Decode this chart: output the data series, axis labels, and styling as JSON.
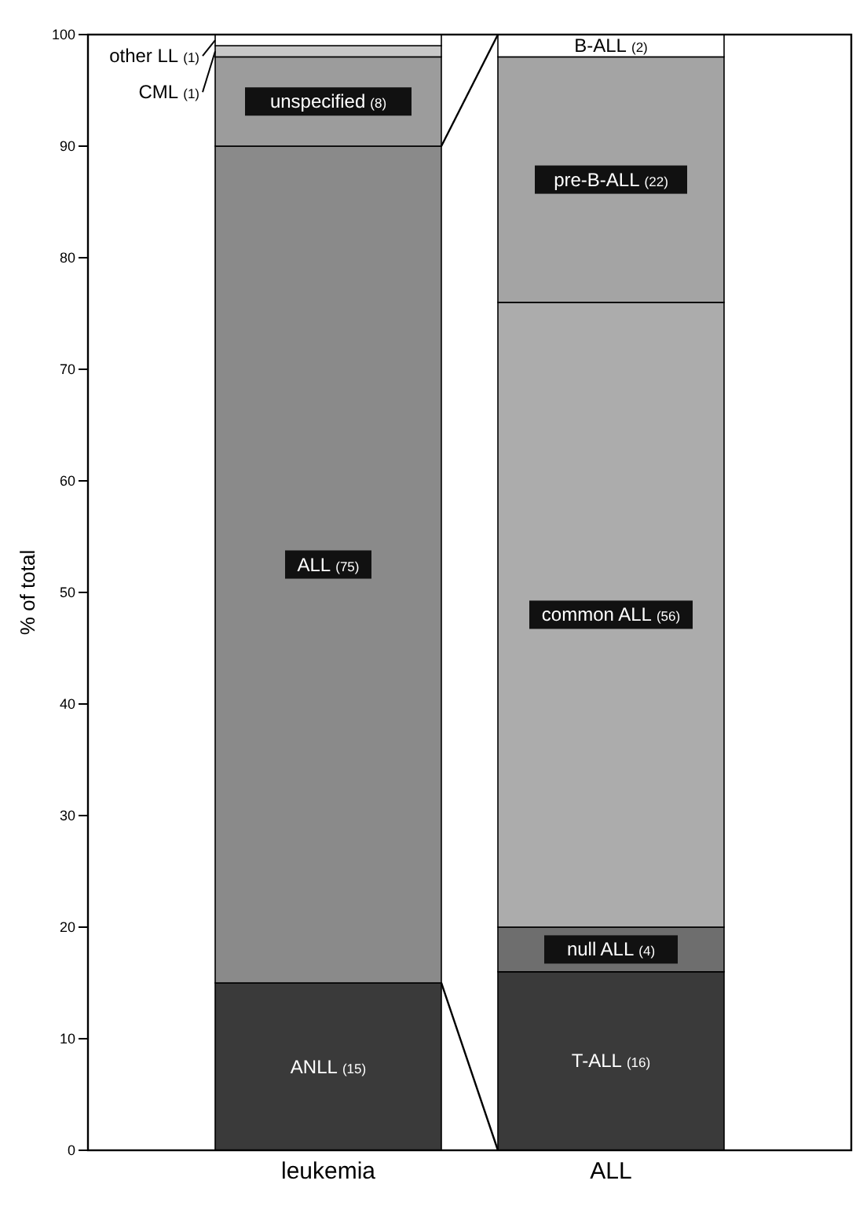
{
  "chart_data": {
    "type": "bar",
    "stacked": true,
    "categories": [
      "leukemia",
      "ALL"
    ],
    "ylabel": "% of total",
    "ylim": [
      0,
      100
    ],
    "yticks": [
      0,
      10,
      20,
      30,
      40,
      50,
      60,
      70,
      80,
      90,
      100
    ],
    "series": [
      {
        "name": "ANLL",
        "color": "#3a3a3a",
        "values": [
          15,
          null
        ],
        "value_labels": [
          "(15)",
          null
        ]
      },
      {
        "name": "ALL",
        "color": "#8a8a8a",
        "values": [
          75,
          null
        ],
        "value_labels": [
          "(75)",
          null
        ]
      },
      {
        "name": "unspecified",
        "color": "#9c9c9c",
        "values": [
          8,
          null
        ],
        "value_labels": [
          "(8)",
          null
        ]
      },
      {
        "name": "CML",
        "color": "#c8c8c8",
        "values": [
          1,
          null
        ],
        "value_labels": [
          "(1)",
          null
        ]
      },
      {
        "name": "other LL",
        "color": "#ffffff",
        "values": [
          1,
          null
        ],
        "value_labels": [
          "(1)",
          null
        ]
      },
      {
        "name": "T-ALL",
        "color": "#3a3a3a",
        "values": [
          null,
          16
        ],
        "value_labels": [
          null,
          "(16)"
        ]
      },
      {
        "name": "null ALL",
        "color": "#6e6e6e",
        "values": [
          null,
          4
        ],
        "value_labels": [
          null,
          "(4)"
        ]
      },
      {
        "name": "common ALL",
        "color": "#acacac",
        "values": [
          null,
          56
        ],
        "value_labels": [
          null,
          "(56)"
        ]
      },
      {
        "name": "pre-B-ALL",
        "color": "#a4a4a4",
        "values": [
          null,
          22
        ],
        "value_labels": [
          null,
          "(22)"
        ]
      },
      {
        "name": "B-ALL",
        "color": "#ffffff",
        "values": [
          null,
          2
        ],
        "value_labels": [
          null,
          "(2)"
        ]
      }
    ]
  }
}
